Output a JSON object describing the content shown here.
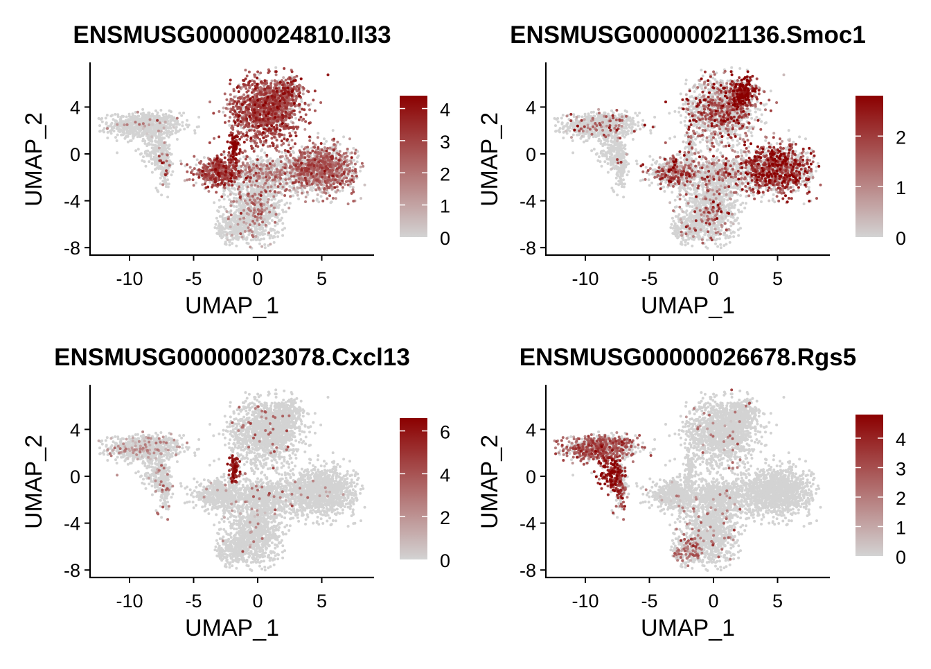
{
  "chart_data": {
    "type": "scatter",
    "description_units": "UMAP coordinates",
    "xlabel": "UMAP_1",
    "ylabel": "UMAP_2",
    "xlim": [
      -13.1,
      9.1
    ],
    "ylim": [
      -8.6,
      7.8
    ],
    "xticks": [
      -10,
      -5,
      0,
      5
    ],
    "yticks": [
      -8,
      -4,
      0,
      4
    ],
    "color_low": "#d3d3d3",
    "color_high": "#8b0000",
    "clusters": [
      {
        "id": "A",
        "cx": -8.8,
        "cy": 2.4,
        "sx": 1.4,
        "sy": 0.55,
        "n": 700
      },
      {
        "id": "A_tail",
        "cx": -7.3,
        "cy": -0.8,
        "sx": 0.3,
        "sy": 1.1,
        "n": 160
      },
      {
        "id": "peri",
        "cx": -7.9,
        "cy": 0.2,
        "sx": 0.45,
        "sy": 0.8,
        "n": 160
      },
      {
        "id": "B",
        "cx": 0.6,
        "cy": 3.8,
        "sx": 1.35,
        "sy": 1.35,
        "n": 1300
      },
      {
        "id": "B2",
        "cx": 2.3,
        "cy": 5.2,
        "sx": 0.55,
        "sy": 0.65,
        "n": 250
      },
      {
        "id": "G",
        "cx": -1.8,
        "cy": 0.6,
        "sx": 0.2,
        "sy": 0.55,
        "n": 80
      },
      {
        "id": "C",
        "cx": -3.0,
        "cy": -1.6,
        "sx": 1.0,
        "sy": 0.6,
        "n": 500
      },
      {
        "id": "F",
        "cx": 0.6,
        "cy": -1.6,
        "sx": 1.1,
        "sy": 0.7,
        "n": 500
      },
      {
        "id": "D",
        "cx": 4.9,
        "cy": -1.3,
        "sx": 1.35,
        "sy": 1.0,
        "n": 1200
      },
      {
        "id": "E",
        "cx": -0.2,
        "cy": -4.6,
        "sx": 1.0,
        "sy": 1.4,
        "n": 900
      },
      {
        "id": "E_tip",
        "cx": -2.0,
        "cy": -6.3,
        "sx": 0.6,
        "sy": 0.7,
        "n": 200
      }
    ],
    "panels": [
      {
        "title": "ENSMUSG00000024810.Il33",
        "max": 4.4,
        "legend_ticks": [
          0,
          1,
          2,
          3,
          4
        ],
        "expression": {
          "A": [
            1.2,
            0.05
          ],
          "A_tail": [
            2.5,
            0.1
          ],
          "peri": [
            0,
            0
          ],
          "B": [
            2.6,
            0.85
          ],
          "B2": [
            2.2,
            0.8
          ],
          "G": [
            3.8,
            0.9
          ],
          "C": [
            2.6,
            0.8
          ],
          "F": [
            1.5,
            0.3
          ],
          "D": [
            1.9,
            0.65
          ],
          "E": [
            1.6,
            0.15
          ],
          "E_tip": [
            1.2,
            0.05
          ]
        }
      },
      {
        "title": "ENSMUSG00000021136.Smoc1",
        "max": 2.8,
        "legend_ticks": [
          0,
          1,
          2
        ],
        "expression": {
          "A": [
            1.2,
            0.1
          ],
          "A_tail": [
            1.0,
            0.05
          ],
          "peri": [
            0,
            0
          ],
          "B": [
            1.4,
            0.35
          ],
          "B2": [
            2.3,
            0.9
          ],
          "G": [
            1.0,
            0.2
          ],
          "C": [
            1.3,
            0.45
          ],
          "F": [
            1.2,
            0.2
          ],
          "D": [
            1.8,
            0.55
          ],
          "E": [
            1.1,
            0.15
          ],
          "E_tip": [
            1.0,
            0.05
          ]
        }
      },
      {
        "title": "ENSMUSG00000023078.Cxcl13",
        "max": 6.6,
        "legend_ticks": [
          0,
          2,
          4,
          6
        ],
        "expression": {
          "A": [
            1.8,
            0.12
          ],
          "A_tail": [
            3.0,
            0.1
          ],
          "peri": [
            1.5,
            0.05
          ],
          "B": [
            3.0,
            0.02
          ],
          "B2": [
            2.0,
            0.0
          ],
          "G": [
            5.5,
            0.9
          ],
          "C": [
            2.5,
            0.02
          ],
          "F": [
            3.0,
            0.03
          ],
          "D": [
            2.0,
            0.01
          ],
          "E": [
            2.0,
            0.02
          ],
          "E_tip": [
            1.5,
            0.02
          ]
        }
      },
      {
        "title": "ENSMUSG00000026678.Rgs5",
        "max": 4.8,
        "legend_ticks": [
          0,
          1,
          2,
          3,
          4
        ],
        "expression": {
          "A": [
            2.6,
            0.6
          ],
          "A_tail": [
            3.0,
            0.4
          ],
          "peri": [
            4.2,
            0.9
          ],
          "B": [
            2.0,
            0.02
          ],
          "B2": [
            2.0,
            0.01
          ],
          "G": [
            1.5,
            0.0
          ],
          "C": [
            1.5,
            0.02
          ],
          "F": [
            1.5,
            0.02
          ],
          "D": [
            1.5,
            0.0
          ],
          "E": [
            2.0,
            0.04
          ],
          "E_tip": [
            2.2,
            0.35
          ]
        }
      }
    ]
  }
}
